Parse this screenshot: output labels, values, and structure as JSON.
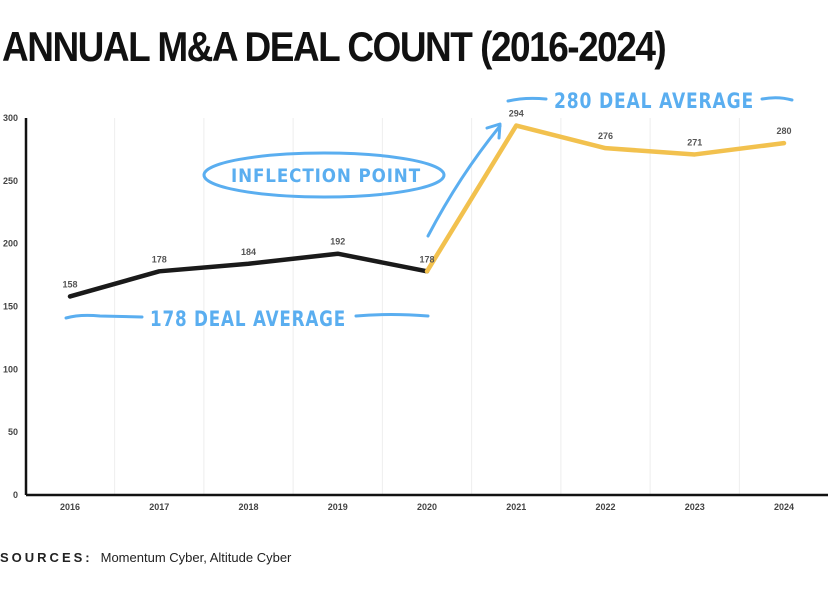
{
  "page": {
    "title": "ANNUAL M&A DEAL COUNT (2016-2024)",
    "sources_label": "SOURCES:",
    "sources_text": "Momentum Cyber, Altitude Cyber"
  },
  "chart_data": {
    "type": "line",
    "title": "ANNUAL M&A DEAL COUNT (2016-2024)",
    "xlabel": "",
    "ylabel": "",
    "categories": [
      "2016",
      "2017",
      "2018",
      "2019",
      "2020",
      "2021",
      "2022",
      "2023",
      "2024"
    ],
    "values": [
      158,
      178,
      184,
      192,
      178,
      294,
      276,
      271,
      280
    ],
    "ylim": [
      0,
      300
    ],
    "yticks": [
      0,
      50,
      100,
      150,
      200,
      250,
      300
    ],
    "grid": "vertical",
    "series_segments": [
      {
        "name": "2016-2020",
        "from": 0,
        "to": 4,
        "color": "#1a1a1a"
      },
      {
        "name": "2020-2024",
        "from": 4,
        "to": 8,
        "color": "#f2c14e"
      }
    ],
    "annotations": {
      "inflection": "INFLECTION POINT",
      "avg_early": "178 DEAL AVERAGE",
      "avg_late": "280 DEAL AVERAGE"
    },
    "colors": {
      "annotation": "#5aaef0",
      "axis": "#111111",
      "grid": "#eeeeee",
      "tick": "#444444"
    }
  }
}
